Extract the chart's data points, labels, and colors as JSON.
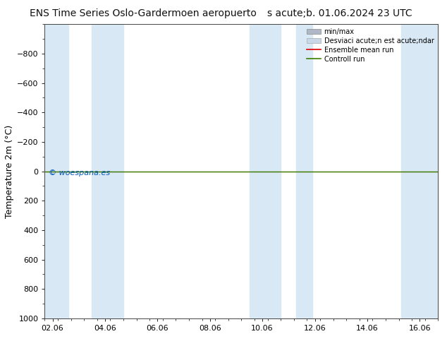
{
  "title": "ENS Time Series Oslo-Gardermoen aeropuerto",
  "subtitle": "s acute;b. 01.06.2024 23 UTC",
  "ylabel": "Temperature 2m (°C)",
  "background_color": "#ffffff",
  "plot_bg_color": "#ffffff",
  "ylim_bottom": 1000,
  "ylim_top": -1000,
  "yticks": [
    -800,
    -600,
    -400,
    -200,
    0,
    200,
    400,
    600,
    800,
    1000
  ],
  "xtick_labels": [
    "02.06",
    "04.06",
    "06.06",
    "08.06",
    "10.06",
    "12.06",
    "14.06",
    "16.06"
  ],
  "xtick_positions": [
    0,
    2,
    4,
    6,
    8,
    10,
    12,
    14
  ],
  "xlim": [
    -0.3,
    14.7
  ],
  "shaded_bands": [
    [
      -0.3,
      0.6
    ],
    [
      1.5,
      2.7
    ],
    [
      7.5,
      8.7
    ],
    [
      9.3,
      9.9
    ],
    [
      13.3,
      14.7
    ]
  ],
  "band_color": "#d8e8f5",
  "green_line_y": 0,
  "green_line_color": "#3a8000",
  "red_line_color": "#dd0000",
  "watermark": "© woespana.es",
  "watermark_color": "#0055bb",
  "legend_label_minmax": "min/max",
  "legend_label_std": "Desviaci acute;n est acute;ndar",
  "legend_label_ensemble": "Ensemble mean run",
  "legend_label_control": "Controll run",
  "legend_color_minmax": "#b0b8c8",
  "legend_color_std": "#c8d8e8",
  "title_fontsize": 10,
  "subtitle_fontsize": 10,
  "axis_fontsize": 9,
  "tick_fontsize": 8,
  "watermark_fontsize": 8
}
